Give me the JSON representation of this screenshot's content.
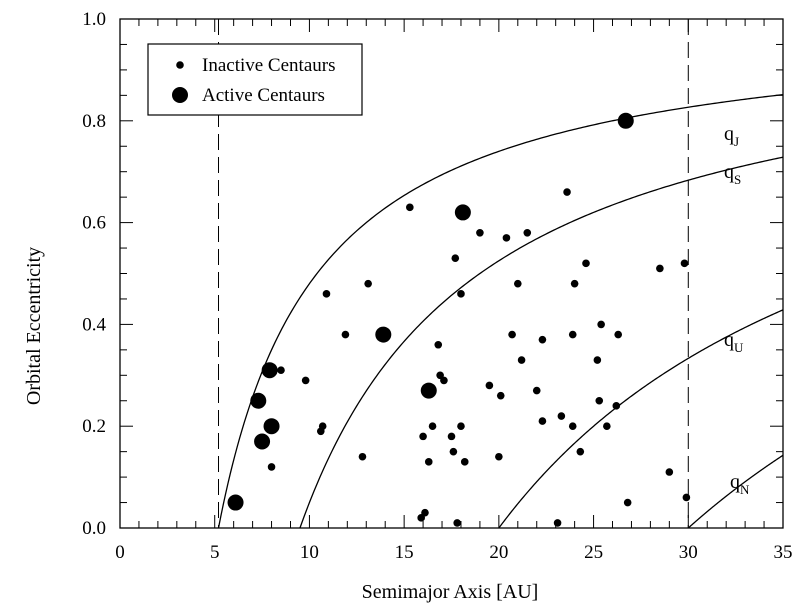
{
  "chart_data": {
    "type": "scatter",
    "xlabel": "Semimajor Axis [AU]",
    "ylabel": "Orbital Eccentricity",
    "xlim": [
      0,
      35
    ],
    "ylim": [
      0,
      1.0
    ],
    "x_ticks": [
      "0",
      "5",
      "10",
      "15",
      "20",
      "25",
      "30",
      "35"
    ],
    "y_ticks": [
      "0.0",
      "0.2",
      "0.4",
      "0.6",
      "0.8",
      "1.0"
    ],
    "grid": false,
    "legend_position": "top-left",
    "reference_lines": [
      5.2,
      30.0
    ],
    "curves": [
      {
        "name": "q",
        "sub": "J",
        "perihelion": 5.2
      },
      {
        "name": "q",
        "sub": "S",
        "perihelion": 9.5
      },
      {
        "name": "q",
        "sub": "U",
        "perihelion": 20.0
      },
      {
        "name": "q",
        "sub": "N",
        "perihelion": 30.0
      }
    ],
    "series": [
      {
        "name": "Inactive Centaurs",
        "points": [
          [
            8.0,
            0.12
          ],
          [
            8.5,
            0.31
          ],
          [
            9.8,
            0.29
          ],
          [
            10.6,
            0.19
          ],
          [
            10.7,
            0.2
          ],
          [
            10.9,
            0.46
          ],
          [
            11.9,
            0.38
          ],
          [
            12.8,
            0.14
          ],
          [
            13.1,
            0.48
          ],
          [
            15.3,
            0.63
          ],
          [
            15.9,
            0.02
          ],
          [
            16.0,
            0.18
          ],
          [
            16.1,
            0.03
          ],
          [
            16.3,
            0.13
          ],
          [
            16.5,
            0.2
          ],
          [
            16.8,
            0.36
          ],
          [
            16.9,
            0.3
          ],
          [
            17.1,
            0.29
          ],
          [
            17.5,
            0.18
          ],
          [
            17.6,
            0.15
          ],
          [
            17.7,
            0.53
          ],
          [
            17.8,
            0.01
          ],
          [
            18.0,
            0.46
          ],
          [
            18.0,
            0.2
          ],
          [
            18.2,
            0.13
          ],
          [
            19.0,
            0.58
          ],
          [
            19.5,
            0.28
          ],
          [
            20.0,
            0.14
          ],
          [
            20.1,
            0.26
          ],
          [
            20.4,
            0.57
          ],
          [
            20.7,
            0.38
          ],
          [
            21.0,
            0.48
          ],
          [
            21.2,
            0.33
          ],
          [
            21.5,
            0.58
          ],
          [
            22.0,
            0.27
          ],
          [
            22.3,
            0.21
          ],
          [
            22.3,
            0.37
          ],
          [
            23.1,
            0.01
          ],
          [
            23.3,
            0.22
          ],
          [
            23.6,
            0.66
          ],
          [
            23.9,
            0.2
          ],
          [
            23.9,
            0.38
          ],
          [
            24.0,
            0.48
          ],
          [
            24.3,
            0.15
          ],
          [
            24.6,
            0.52
          ],
          [
            25.2,
            0.33
          ],
          [
            25.3,
            0.25
          ],
          [
            25.4,
            0.4
          ],
          [
            25.7,
            0.2
          ],
          [
            26.2,
            0.24
          ],
          [
            26.3,
            0.38
          ],
          [
            26.8,
            0.05
          ],
          [
            28.5,
            0.51
          ],
          [
            29.0,
            0.11
          ],
          [
            29.8,
            0.52
          ],
          [
            29.9,
            0.06
          ]
        ]
      },
      {
        "name": "Active Centaurs",
        "points": [
          [
            6.1,
            0.05
          ],
          [
            7.3,
            0.25
          ],
          [
            7.5,
            0.17
          ],
          [
            7.9,
            0.31
          ],
          [
            8.0,
            0.2
          ],
          [
            13.9,
            0.38
          ],
          [
            16.3,
            0.27
          ],
          [
            18.1,
            0.62
          ],
          [
            26.7,
            0.8
          ]
        ]
      }
    ]
  }
}
